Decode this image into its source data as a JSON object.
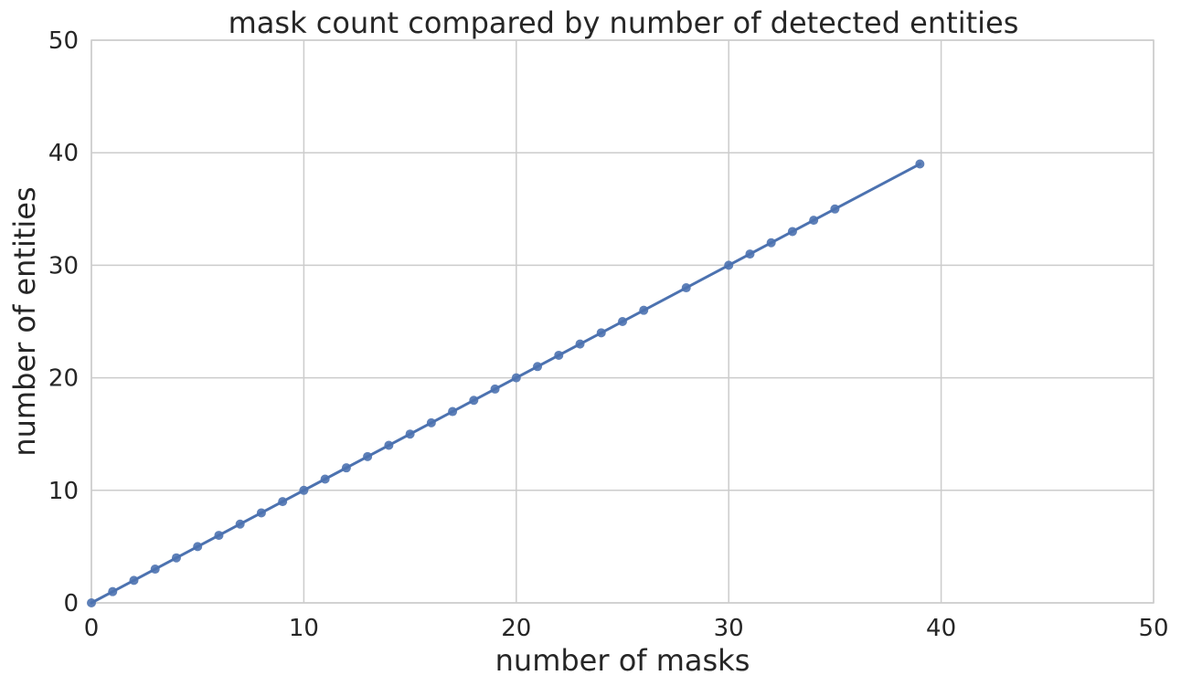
{
  "chart_data": {
    "type": "scatter",
    "title": "mask count compared by number of detected entities",
    "xlabel": "number of masks",
    "ylabel": "number of entities",
    "xlim": [
      0,
      50
    ],
    "ylim": [
      0,
      50
    ],
    "xticks": [
      0,
      10,
      20,
      30,
      40,
      50
    ],
    "yticks": [
      0,
      10,
      20,
      30,
      40,
      50
    ],
    "grid": true,
    "colors": {
      "series": "#4c72b0",
      "grid": "#cccccc",
      "text": "#262626"
    },
    "series": [
      {
        "x": [
          0,
          1,
          2,
          3,
          4,
          5,
          6,
          7,
          8,
          9,
          10,
          11,
          12,
          13,
          14,
          15,
          16,
          17,
          18,
          19,
          20,
          21,
          22,
          23,
          24,
          25,
          26,
          28,
          30,
          31,
          32,
          33,
          34,
          35,
          39
        ],
        "y": [
          0,
          1,
          2,
          3,
          4,
          5,
          6,
          7,
          8,
          9,
          10,
          11,
          12,
          13,
          14,
          15,
          16,
          17,
          18,
          19,
          20,
          21,
          22,
          23,
          24,
          25,
          26,
          28,
          30,
          31,
          32,
          33,
          34,
          35,
          39
        ]
      }
    ],
    "regression_line": {
      "x": [
        0,
        39
      ],
      "y": [
        0,
        39
      ]
    }
  }
}
